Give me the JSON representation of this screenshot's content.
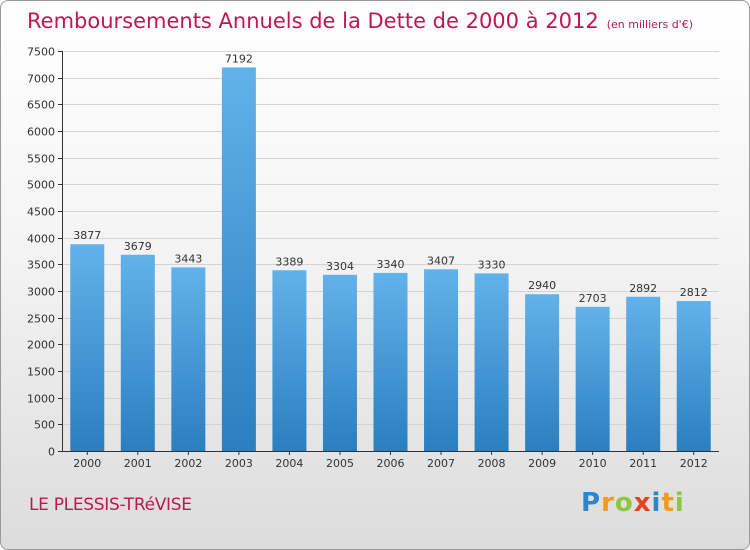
{
  "title": "Remboursements Annuels de la Dette de 2000 à 2012",
  "subtitle": "(en milliers d'€)",
  "city": "LE PLESSIS-TRéVISE",
  "logo": {
    "letters": [
      "P",
      "r",
      "o",
      "x",
      "i",
      "t",
      "i"
    ],
    "colors": [
      "#2e86c9",
      "#f39a1c",
      "#8dc63f",
      "#e8401c",
      "#2e86c9",
      "#f39a1c",
      "#8dc63f"
    ]
  },
  "colors": {
    "title": "#c0174f",
    "bar_top": "#62b2ea",
    "bar_bottom": "#2a7fc0",
    "grid": "#d4d4d4",
    "axis": "#333333"
  },
  "chart_data": {
    "type": "bar",
    "title": "Remboursements Annuels de la Dette de 2000 à 2012",
    "ylabel": "(en milliers d'€)",
    "xlabel": "",
    "categories": [
      "2000",
      "2001",
      "2002",
      "2003",
      "2004",
      "2005",
      "2006",
      "2007",
      "2008",
      "2009",
      "2010",
      "2011",
      "2012"
    ],
    "values": [
      3877,
      3679,
      3443,
      7192,
      3389,
      3304,
      3340,
      3407,
      3330,
      2940,
      2703,
      2892,
      2812
    ],
    "ylim": [
      0,
      7500
    ],
    "yticks": [
      0,
      500,
      1000,
      1500,
      2000,
      2500,
      3000,
      3500,
      4000,
      4500,
      5000,
      5500,
      6000,
      6500,
      7000,
      7500
    ],
    "grid": true
  }
}
